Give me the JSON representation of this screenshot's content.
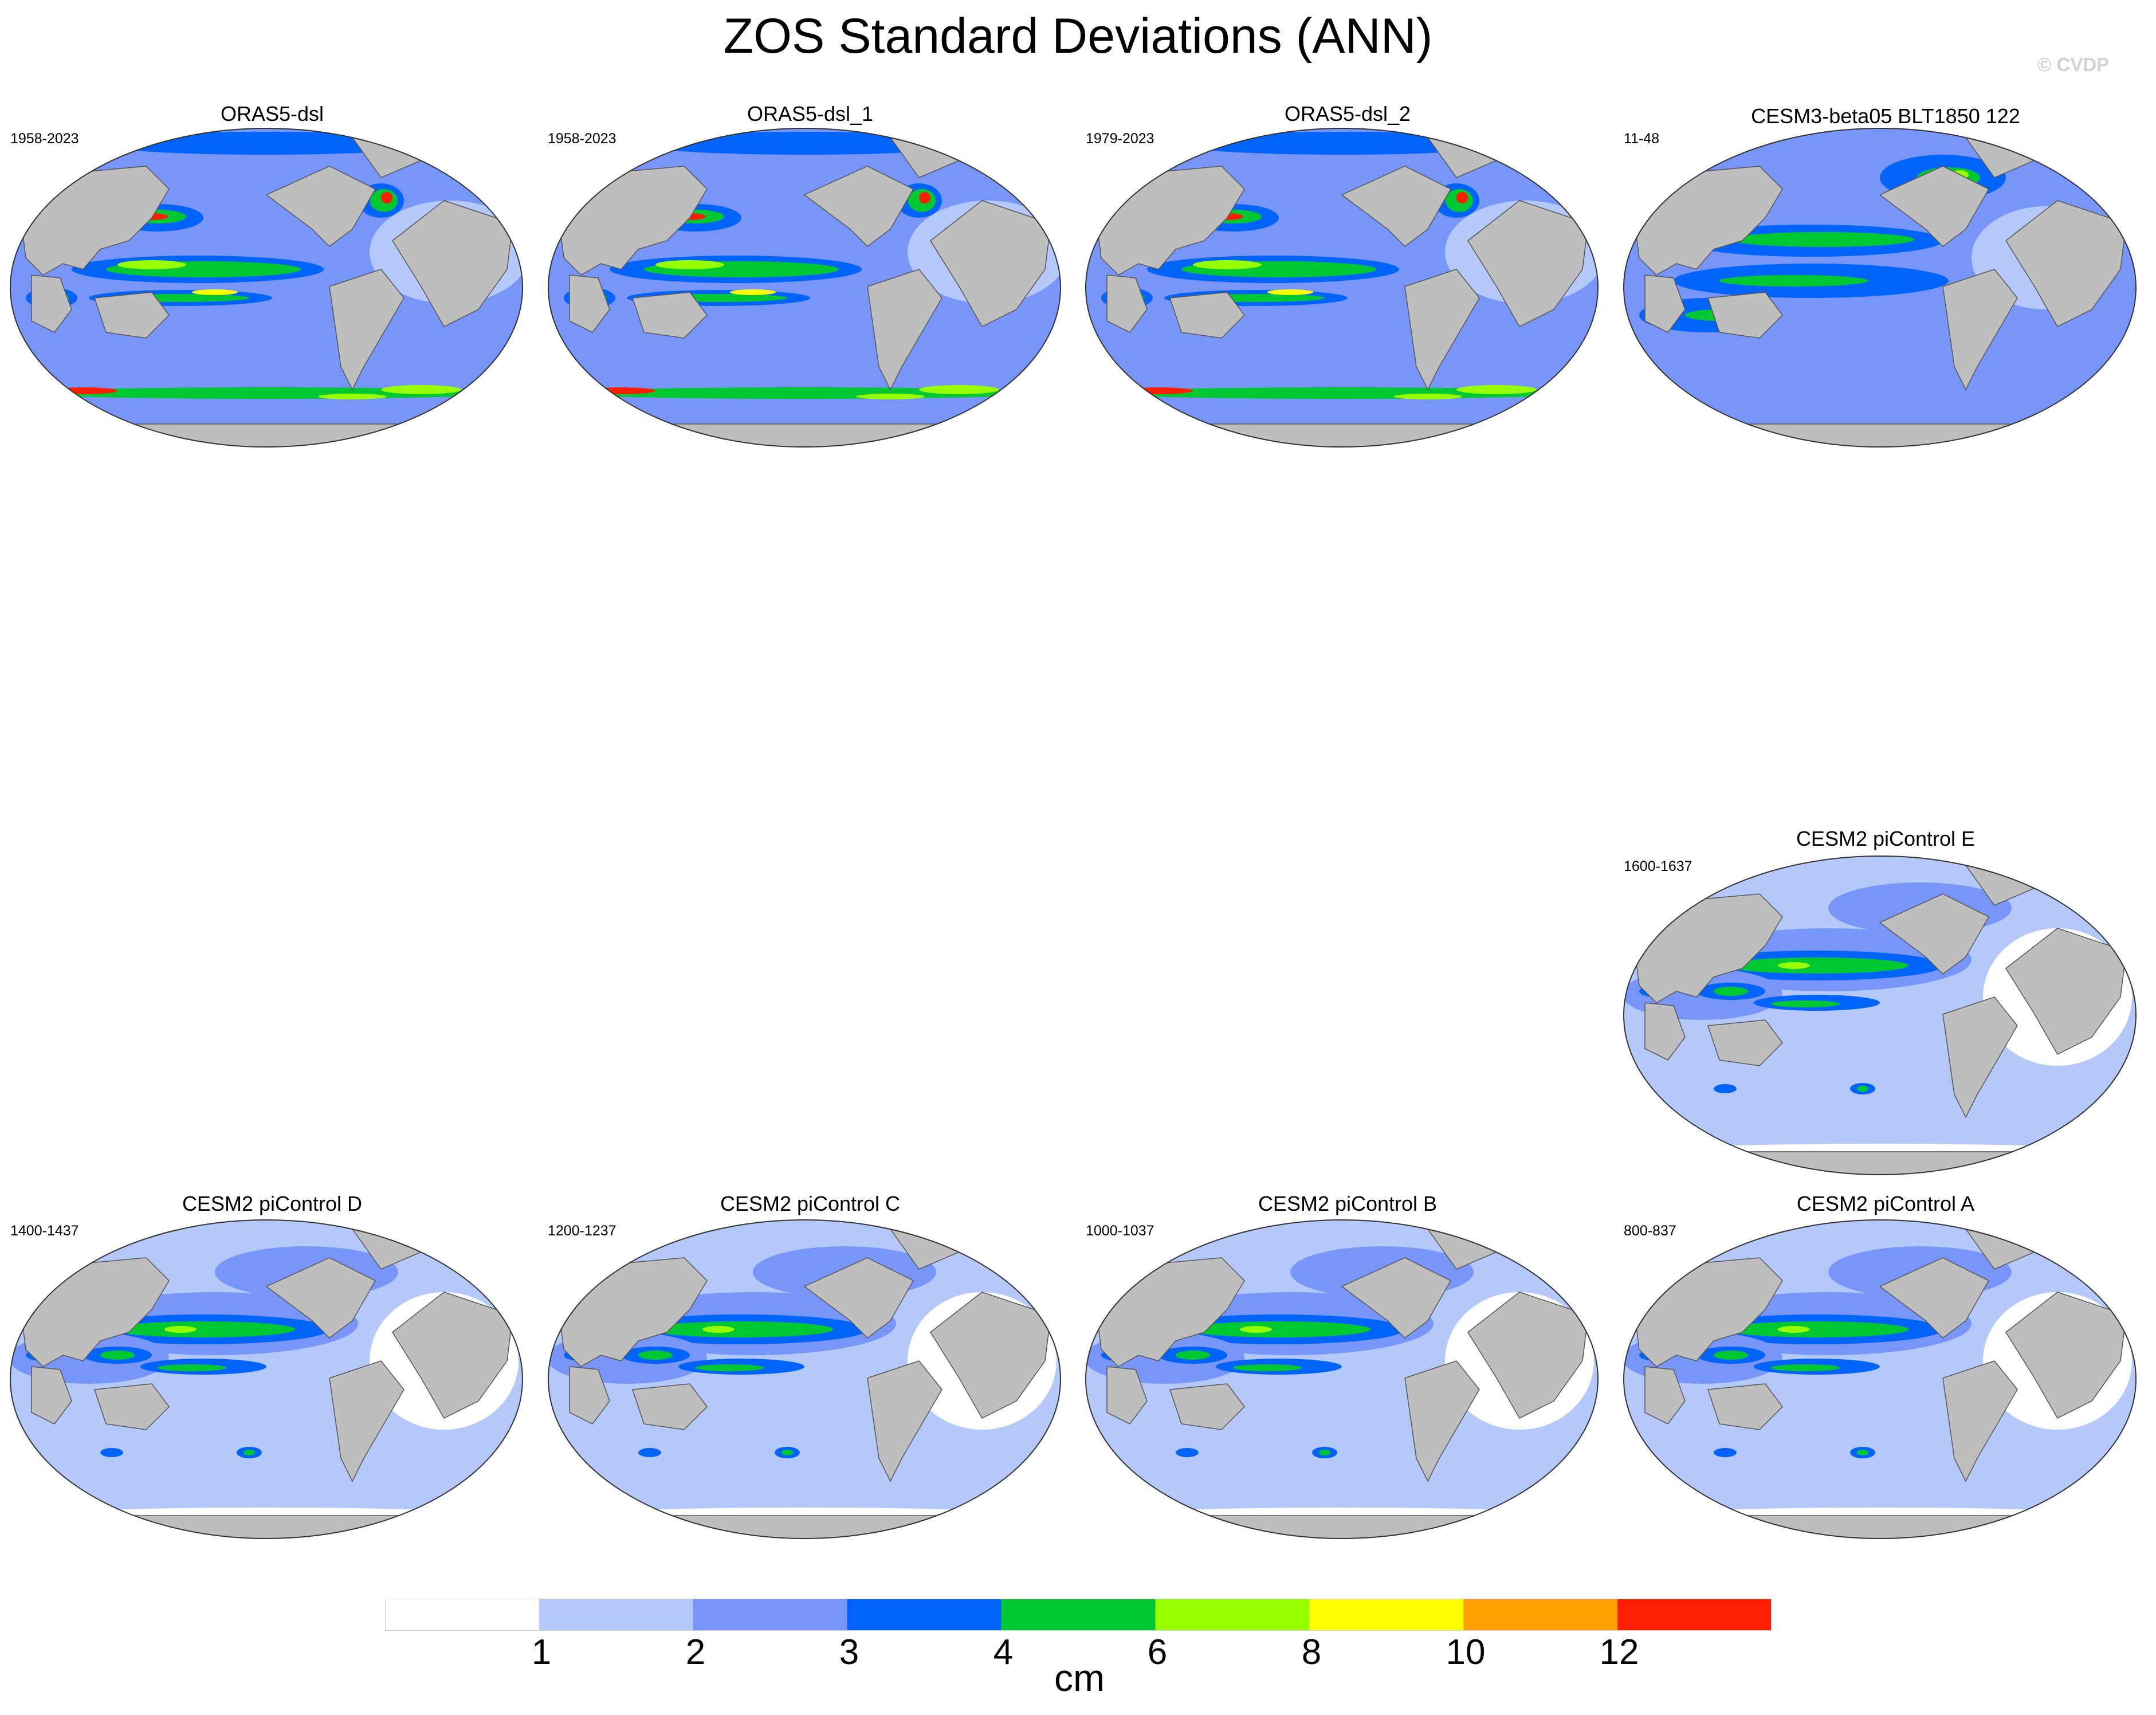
{
  "title": "ZOS Standard Deviations (ANN)",
  "copyright": "© CVDP",
  "colors": {
    "land": "#bebebe",
    "levels": [
      "#ffffff",
      "#b4c8fa",
      "#7896fa",
      "#0064fa",
      "#00c832",
      "#96ff00",
      "#ffff00",
      "#ffa000",
      "#ff1e00"
    ]
  },
  "panels": [
    {
      "title": "ORAS5-dsl",
      "years": "1958-2023",
      "style": "reanalysis"
    },
    {
      "title": "ORAS5-dsl_1",
      "years": "1958-2023",
      "style": "reanalysis"
    },
    {
      "title": "ORAS5-dsl_2",
      "years": "1979-2023",
      "style": "reanalysis"
    },
    {
      "title": "CESM3-beta05 BLT1850 122",
      "years": "11-48",
      "style": "cesm3"
    },
    {
      "title": "CESM2 piControl E",
      "years": "1600-1637",
      "style": "cesm2"
    },
    {
      "title": "CESM2 piControl D",
      "years": "1400-1437",
      "style": "cesm2"
    },
    {
      "title": "CESM2 piControl C",
      "years": "1200-1237",
      "style": "cesm2"
    },
    {
      "title": "CESM2 piControl B",
      "years": "1000-1037",
      "style": "cesm2"
    },
    {
      "title": "CESM2 piControl A",
      "years": "800-837",
      "style": "cesm2"
    }
  ],
  "colorbar": {
    "labels": [
      "1",
      "2",
      "3",
      "4",
      "6",
      "8",
      "10",
      "12"
    ],
    "units": "cm"
  }
}
